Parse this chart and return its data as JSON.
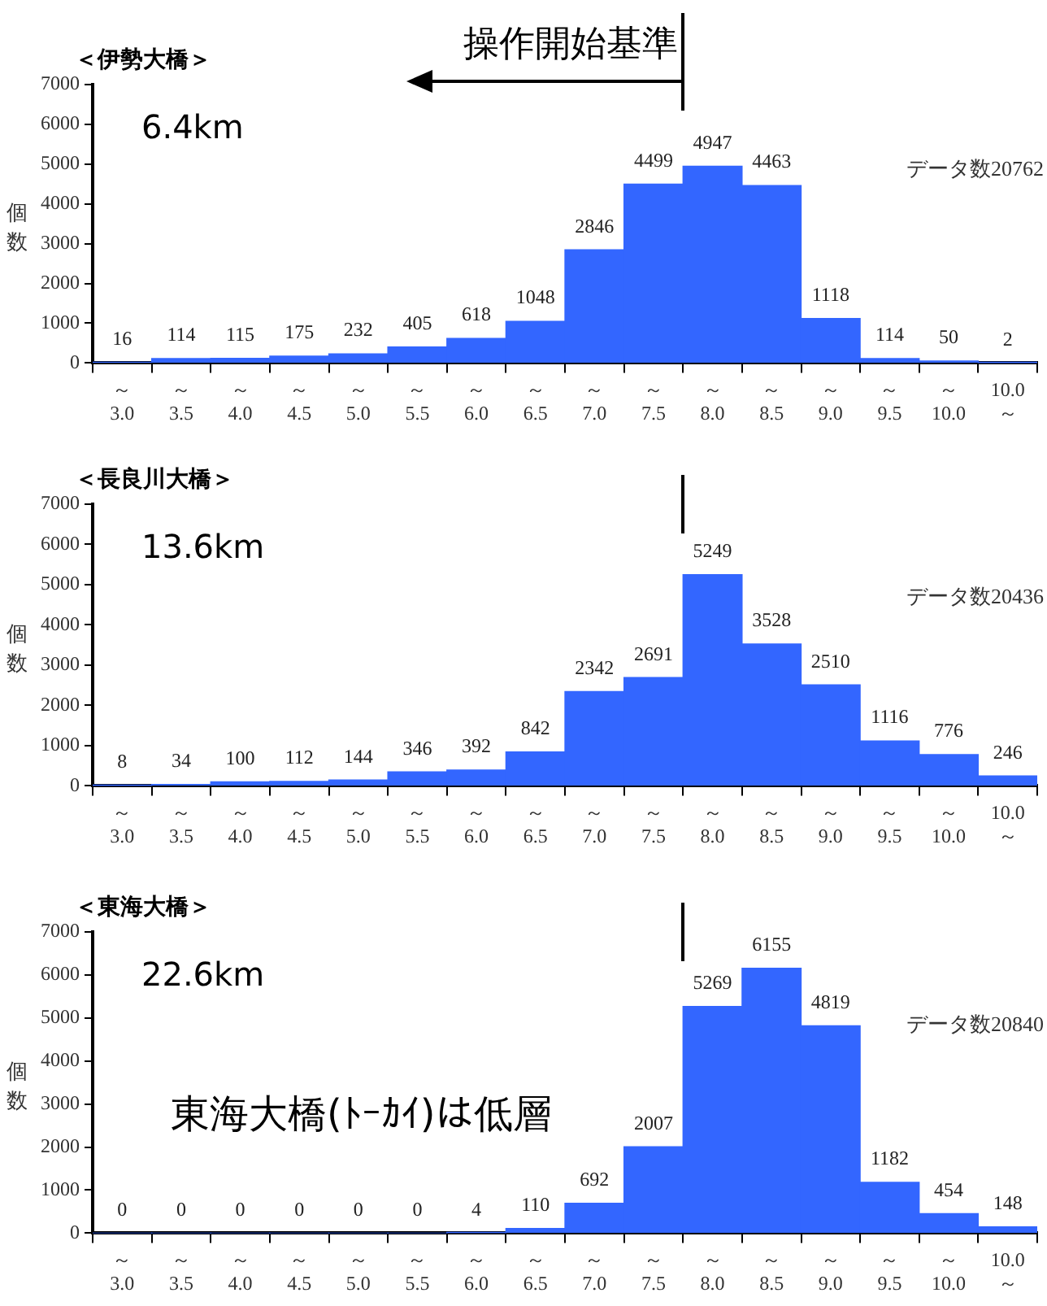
{
  "chart_data": [
    {
      "type": "bar",
      "title": "＜伊勢大橋＞",
      "ylabel": "個数",
      "categories": [
        "～\n3.0",
        "～\n3.5",
        "～\n4.0",
        "～\n4.5",
        "～\n5.0",
        "～\n5.5",
        "～\n6.0",
        "～\n6.5",
        "～\n7.0",
        "～\n7.5",
        "～\n8.0",
        "～\n8.5",
        "～\n9.0",
        "～\n9.5",
        "～\n10.0",
        "10.0\n～"
      ],
      "values": [
        16,
        114,
        115,
        175,
        232,
        405,
        618,
        1048,
        2846,
        4499,
        4947,
        4463,
        1118,
        114,
        50,
        2
      ],
      "color": "#3366ff",
      "ylim": [
        0,
        7000
      ],
      "yticks": [
        0,
        1000,
        2000,
        3000,
        4000,
        5000,
        6000,
        7000
      ],
      "data_labels": true,
      "grid": false,
      "annotations": [
        "6.4km",
        "データ数20762",
        "操作開始基準"
      ]
    },
    {
      "type": "bar",
      "title": "＜長良川大橋＞",
      "ylabel": "個数",
      "categories": [
        "～\n3.0",
        "～\n3.5",
        "～\n4.0",
        "～\n4.5",
        "～\n5.0",
        "～\n5.5",
        "～\n6.0",
        "～\n6.5",
        "～\n7.0",
        "～\n7.5",
        "～\n8.0",
        "～\n8.5",
        "～\n9.0",
        "～\n9.5",
        "～\n10.0",
        "10.0\n～"
      ],
      "values": [
        8,
        34,
        100,
        112,
        144,
        346,
        392,
        842,
        2342,
        2691,
        5249,
        3528,
        2510,
        1116,
        776,
        246
      ],
      "color": "#3366ff",
      "ylim": [
        0,
        7000
      ],
      "yticks": [
        0,
        1000,
        2000,
        3000,
        4000,
        5000,
        6000,
        7000
      ],
      "data_labels": true,
      "grid": false,
      "annotations": [
        "13.6km",
        "データ数20436"
      ]
    },
    {
      "type": "bar",
      "title": "＜東海大橋＞",
      "ylabel": "個数",
      "categories": [
        "～\n3.0",
        "～\n3.5",
        "～\n4.0",
        "～\n4.5",
        "～\n5.0",
        "～\n5.5",
        "～\n6.0",
        "～\n6.5",
        "～\n7.0",
        "～\n7.5",
        "～\n8.0",
        "～\n8.5",
        "～\n9.0",
        "～\n9.5",
        "～\n10.0",
        "10.0\n～"
      ],
      "values": [
        0,
        0,
        0,
        0,
        0,
        0,
        4,
        110,
        692,
        2007,
        5269,
        6155,
        4819,
        1182,
        454,
        148
      ],
      "color": "#3366ff",
      "ylim": [
        0,
        7000
      ],
      "yticks": [
        0,
        1000,
        2000,
        3000,
        4000,
        5000,
        6000,
        7000
      ],
      "data_labels": true,
      "grid": false,
      "annotations": [
        "22.6km",
        "データ数20840",
        "東海大橋(ﾄｰｶｲ)は低層"
      ]
    }
  ]
}
